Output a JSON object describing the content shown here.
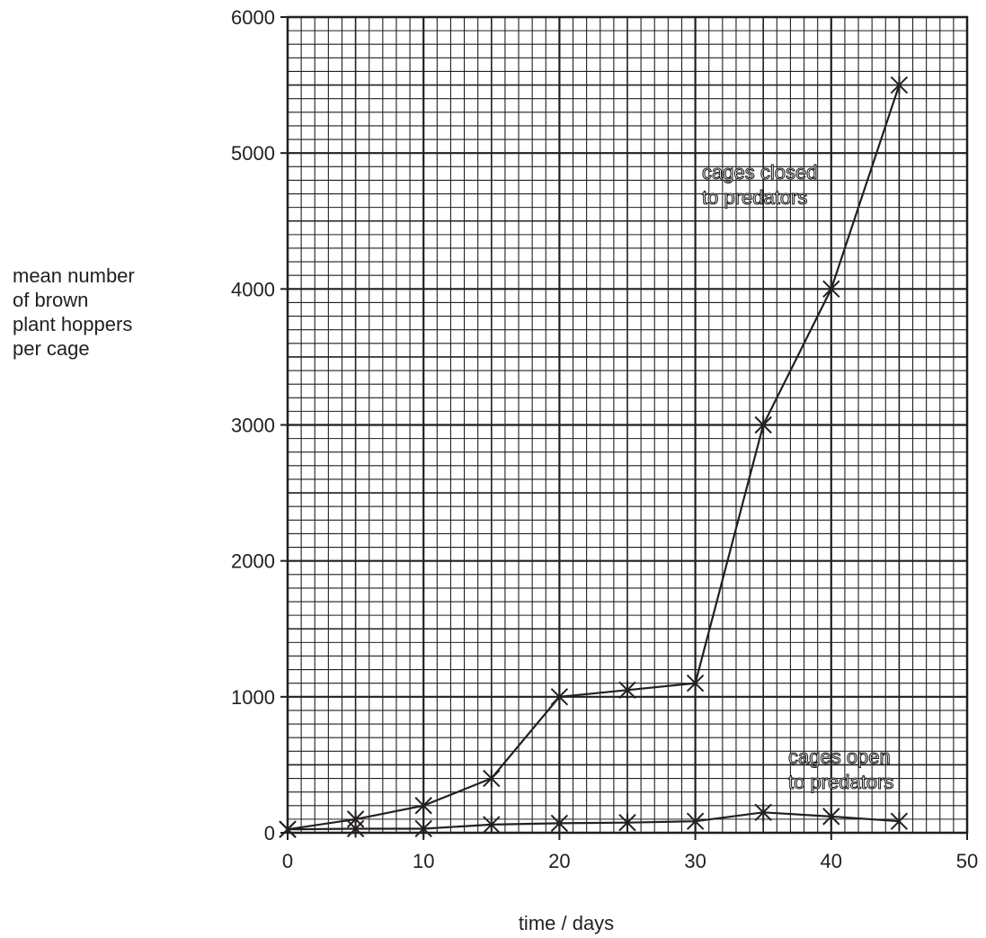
{
  "chart_data": {
    "type": "line",
    "xlabel": "time / days",
    "ylabel_lines": [
      "mean number",
      "of brown",
      "plant hoppers",
      "per cage"
    ],
    "xlim": [
      0,
      50
    ],
    "ylim": [
      0,
      6000
    ],
    "x_ticks": [
      "0",
      "10",
      "20",
      "30",
      "40",
      "50"
    ],
    "y_ticks": [
      "0",
      "1000",
      "2000",
      "3000",
      "4000",
      "5000",
      "6000"
    ],
    "grid": true,
    "marker": "asterisk",
    "series": [
      {
        "name": "cages closed to predators",
        "label_lines": [
          "cages closed",
          "to predators"
        ],
        "x": [
          0,
          5,
          10,
          15,
          20,
          25,
          30,
          35,
          40,
          45
        ],
        "y": [
          25,
          100,
          200,
          400,
          1000,
          1050,
          1100,
          3000,
          4000,
          5500
        ]
      },
      {
        "name": "cages open to predators",
        "label_lines": [
          "cages open",
          "to predators"
        ],
        "x": [
          0,
          5,
          10,
          15,
          20,
          25,
          30,
          35,
          40,
          45
        ],
        "y": [
          25,
          30,
          30,
          60,
          70,
          75,
          85,
          150,
          120,
          85
        ]
      }
    ]
  }
}
